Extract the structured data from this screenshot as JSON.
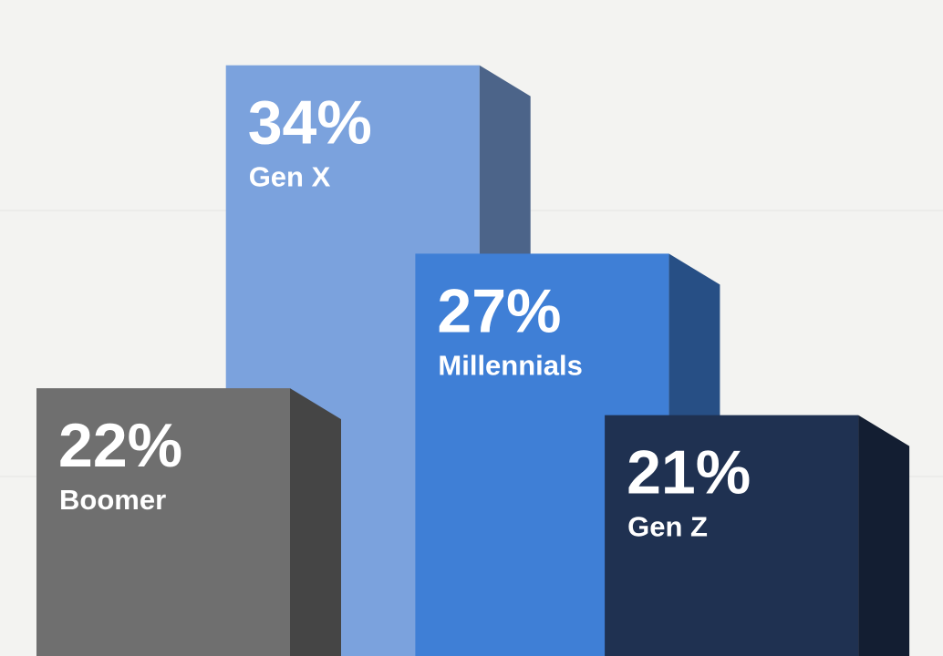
{
  "chart_data": {
    "type": "bar",
    "categories": [
      "Boomer",
      "Gen X",
      "Millennials",
      "Gen Z"
    ],
    "values": [
      22,
      34,
      27,
      21
    ],
    "value_labels": [
      "22%",
      "34%",
      "27%",
      "21%"
    ],
    "colors": [
      "#6f6f6f",
      "#7ba2dd",
      "#3f7fd6",
      "#1f3151"
    ]
  }
}
